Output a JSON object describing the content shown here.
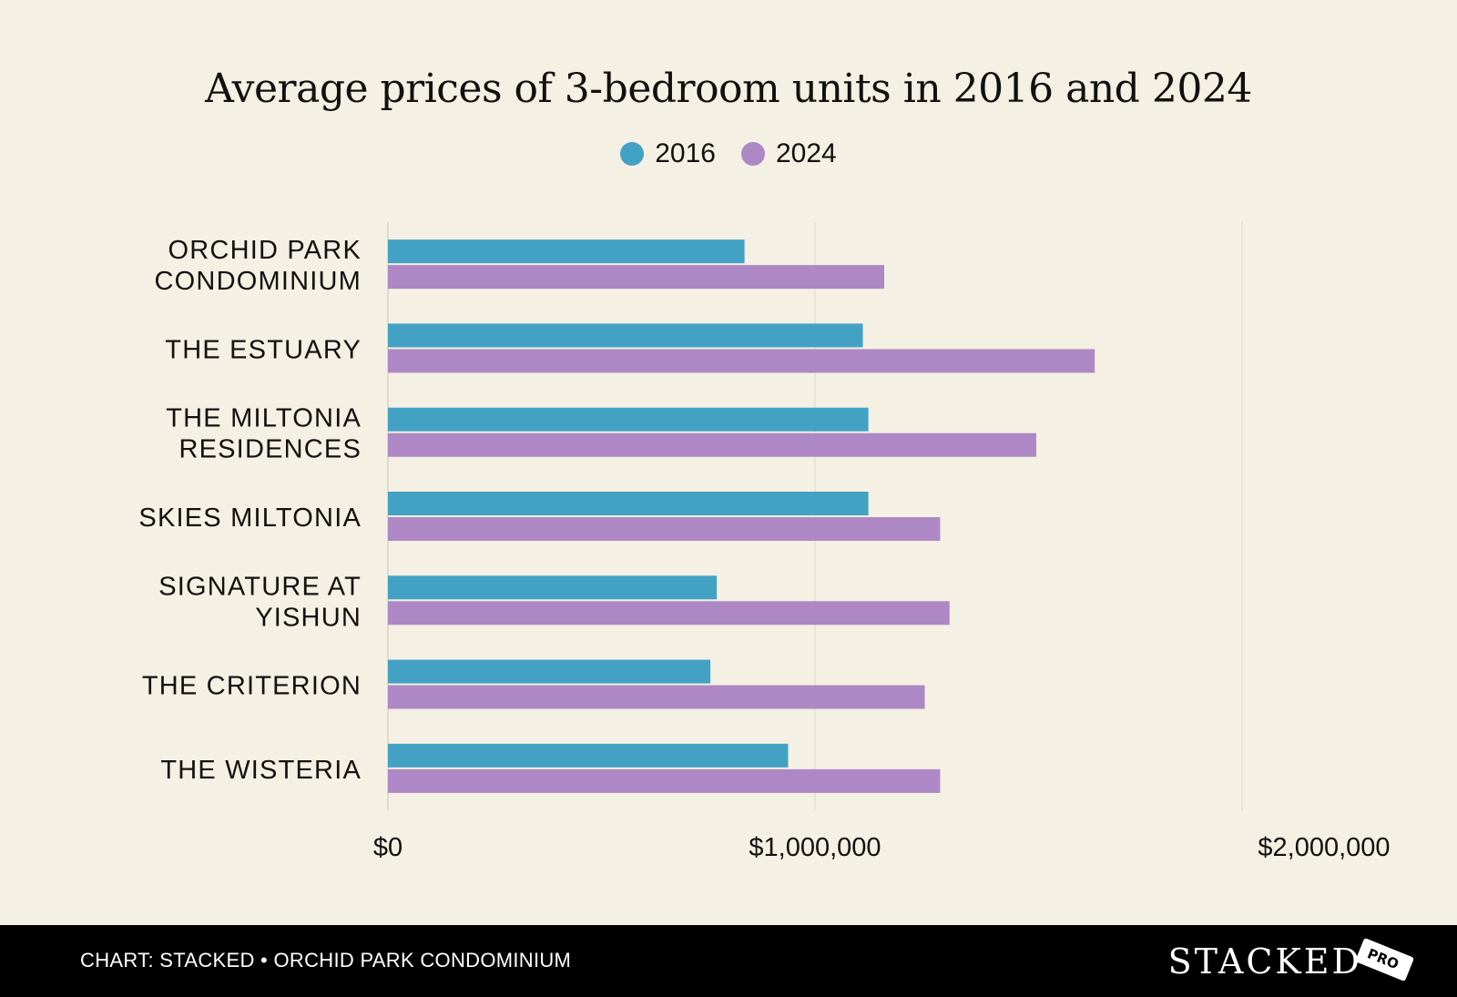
{
  "chart_data": {
    "type": "bar",
    "orientation": "horizontal",
    "title": "Average prices of 3-bedroom units in 2016 and 2024",
    "categories": [
      "ORCHID PARK CONDOMINIUM",
      "THE ESTUARY",
      "THE MILTONIA RESIDENCES",
      "SKIES MILTONIA",
      "SIGNATURE AT YISHUN",
      "THE CRITERION",
      "THE WISTERIA"
    ],
    "category_lines": [
      [
        "ORCHID PARK",
        "CONDOMINIUM"
      ],
      [
        "THE ESTUARY"
      ],
      [
        "THE MILTONIA",
        "RESIDENCES"
      ],
      [
        "SKIES MILTONIA"
      ],
      [
        "SIGNATURE AT",
        "YISHUN"
      ],
      [
        "THE CRITERION"
      ],
      [
        "THE WISTERIA"
      ]
    ],
    "series": [
      {
        "name": "2016",
        "color": "#43a2c3",
        "values": [
          835000,
          1112000,
          1125000,
          1125000,
          770000,
          755000,
          937000
        ]
      },
      {
        "name": "2024",
        "color": "#ae88c5",
        "values": [
          1162000,
          1655000,
          1518000,
          1293000,
          1315000,
          1257000,
          1293000
        ]
      }
    ],
    "xlim": [
      0,
      2000000
    ],
    "xticks": [
      0,
      1000000,
      2000000
    ],
    "xtick_labels": [
      "$0",
      "$1,000,000",
      "$2,000,000"
    ],
    "grid": true,
    "legend": "top-center"
  },
  "footer": {
    "source": "CHART: STACKED • ORCHID PARK CONDOMINIUM",
    "brand": "STACKED",
    "tag": "PRO"
  }
}
